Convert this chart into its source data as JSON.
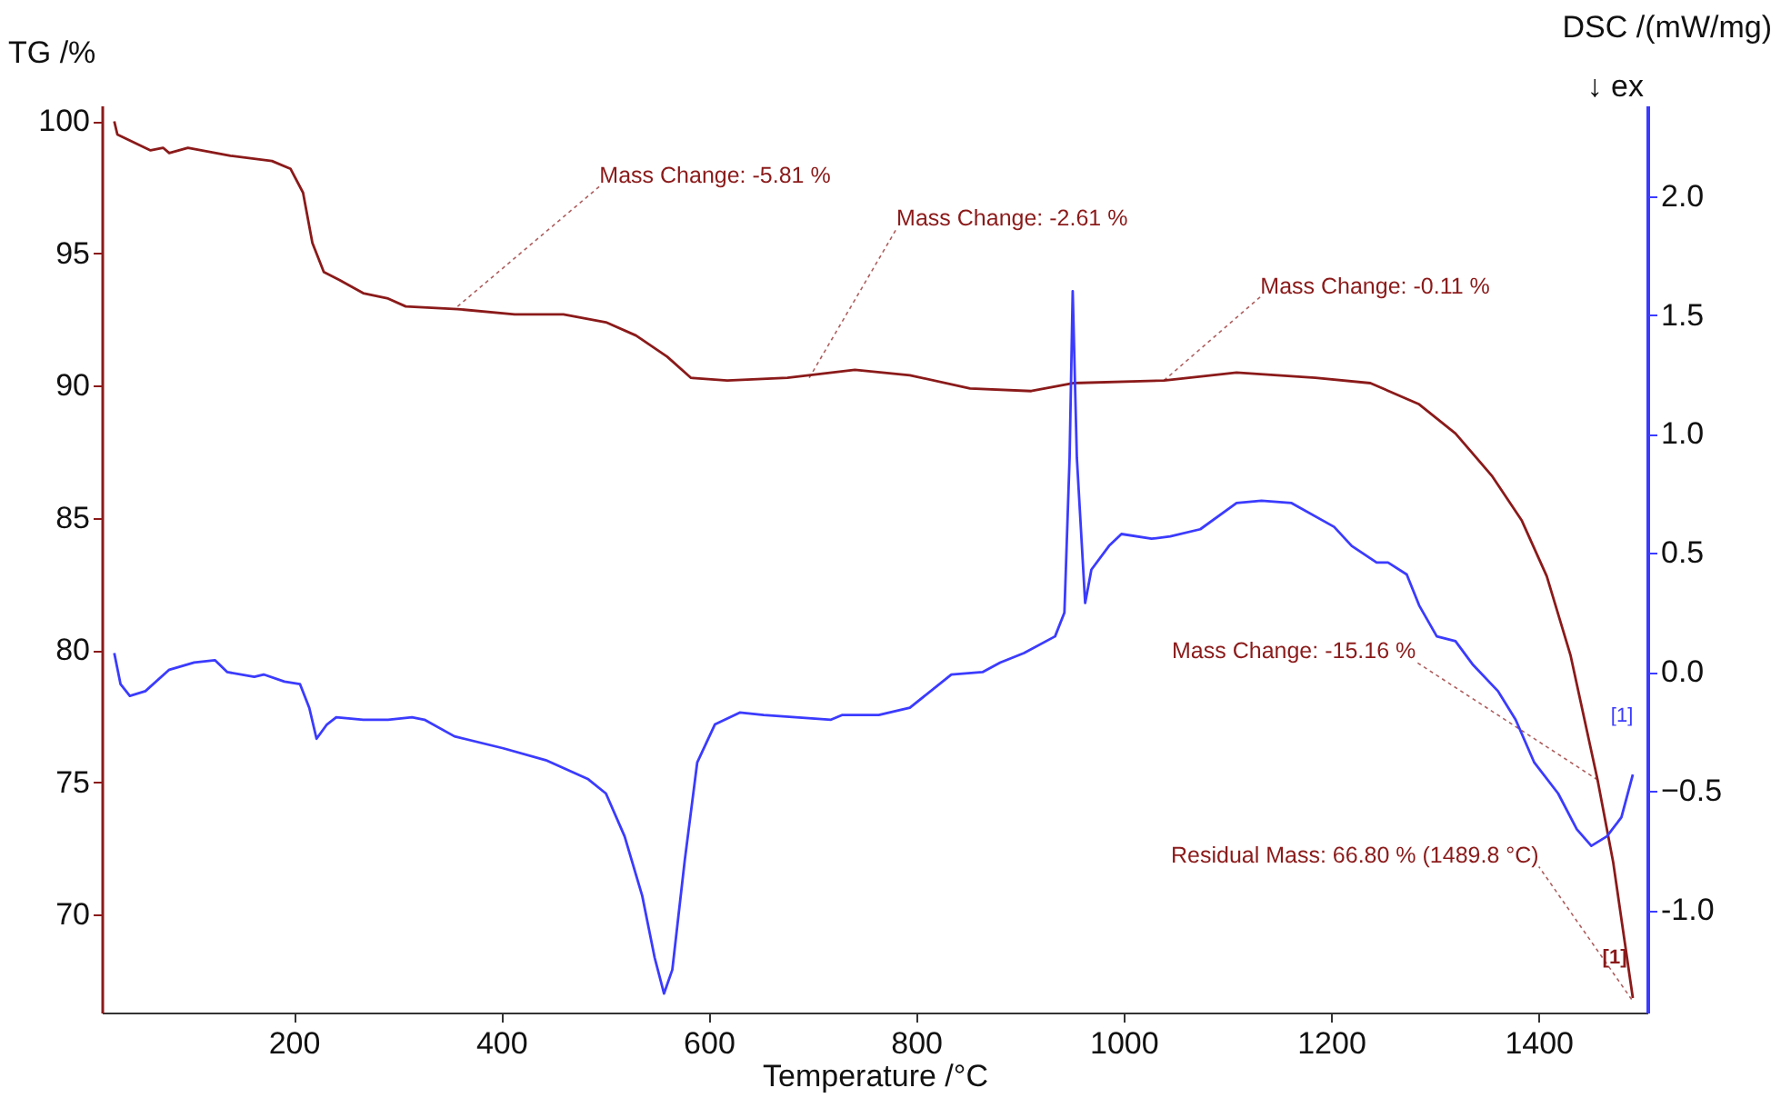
{
  "chart_data": {
    "type": "line",
    "xlabel": "Temperature /°C",
    "ylabel": "TG /%",
    "y2label": "DSC /(mW/mg)",
    "xlim": [
      15,
      1505
    ],
    "xticks": [
      200,
      400,
      600,
      800,
      1000,
      1200,
      1400
    ],
    "ylim": [
      66.3,
      100.6
    ],
    "yticks": [
      70,
      75,
      80,
      85,
      90,
      95,
      100
    ],
    "y2lim": [
      -1.43,
      2.38
    ],
    "y2ticks": [
      {
        "value": -1,
        "label": "-1.0"
      },
      -0.5,
      {
        "value": 0,
        "label": "0.0"
      },
      0.5,
      {
        "value": 1,
        "label": "1.0"
      },
      1.5,
      {
        "value": 2,
        "label": "2.0"
      }
    ],
    "grid": false,
    "series": [
      {
        "color": "#8b1a1a",
        "x": [
          27,
          30,
          62,
          74,
          80,
          98,
          139,
          179,
          197,
          209,
          218,
          229,
          244,
          267,
          291,
          308,
          358,
          413,
          460,
          501,
          530,
          560,
          583,
          618,
          676,
          741,
          794,
          852,
          911,
          951,
          1039,
          1109,
          1185,
          1238,
          1285,
          1320,
          1355,
          1384,
          1408,
          1431,
          1457,
          1472,
          1491
        ],
        "values": [
          100.0,
          99.5,
          98.9,
          99.0,
          98.8,
          99.0,
          98.7,
          98.5,
          98.2,
          97.3,
          95.4,
          94.3,
          94.0,
          93.5,
          93.3,
          93.0,
          92.9,
          92.7,
          92.7,
          92.4,
          91.9,
          91.1,
          90.3,
          90.2,
          90.3,
          90.6,
          90.4,
          89.9,
          89.8,
          90.1,
          90.2,
          90.5,
          90.3,
          90.1,
          89.3,
          88.2,
          86.6,
          84.9,
          82.8,
          79.8,
          75.1,
          72.0,
          66.85
        ]
      },
      {
        "color": "#3b3bff",
        "axis": "y2",
        "x": [
          27,
          33,
          42,
          57,
          80,
          104,
          124,
          136,
          162,
          171,
          191,
          206,
          215,
          222,
          232,
          241,
          267,
          291,
          314,
          326,
          355,
          402,
          443,
          484,
          501,
          519,
          536,
          548,
          557,
          565,
          577,
          589,
          606,
          630,
          653,
          718,
          729,
          764,
          794,
          834,
          864,
          881,
          904,
          934,
          943,
          948,
          951,
          955,
          963,
          969,
          986,
          998,
          1027,
          1045,
          1074,
          1109,
          1133,
          1162,
          1203,
          1220,
          1244,
          1255,
          1273,
          1285,
          1302,
          1320,
          1337,
          1361,
          1378,
          1396,
          1419,
          1437,
          1451,
          1466,
          1480,
          1491
        ],
        "values": [
          0.08,
          -0.05,
          -0.1,
          -0.08,
          0.01,
          0.04,
          0.05,
          0.0,
          -0.02,
          -0.01,
          -0.04,
          -0.05,
          -0.15,
          -0.28,
          -0.22,
          -0.19,
          -0.2,
          -0.2,
          -0.19,
          -0.2,
          -0.27,
          -0.32,
          -0.37,
          -0.45,
          -0.51,
          -0.69,
          -0.94,
          -1.2,
          -1.35,
          -1.25,
          -0.79,
          -0.38,
          -0.22,
          -0.17,
          -0.18,
          -0.2,
          -0.18,
          -0.18,
          -0.15,
          -0.01,
          0.0,
          0.04,
          0.08,
          0.15,
          0.25,
          0.9,
          1.6,
          0.9,
          0.29,
          0.43,
          0.53,
          0.58,
          0.56,
          0.57,
          0.6,
          0.71,
          0.72,
          0.71,
          0.61,
          0.53,
          0.46,
          0.46,
          0.41,
          0.28,
          0.15,
          0.13,
          0.03,
          -0.08,
          -0.2,
          -0.38,
          -0.51,
          -0.66,
          -0.73,
          -0.69,
          -0.61,
          -0.43
        ]
      }
    ],
    "annotations": [
      {
        "text": "Mass Change: -5.81 %",
        "x": 358,
        "y": 93.0
      },
      {
        "text": "Mass Change: -2.61 %",
        "x": 697,
        "y": 90.3
      },
      {
        "text": "Mass Change: -0.11 %",
        "x": 1039,
        "y": 90.2
      },
      {
        "text": "Mass Change: -15.16 %",
        "x": 1457,
        "y": 75.1
      },
      {
        "text": "Residual Mass: 66.80 % (1489.8 °C)",
        "x": 1489.8,
        "y": 66.8
      },
      "[1]",
      "[1]",
      "↓ ex"
    ]
  }
}
